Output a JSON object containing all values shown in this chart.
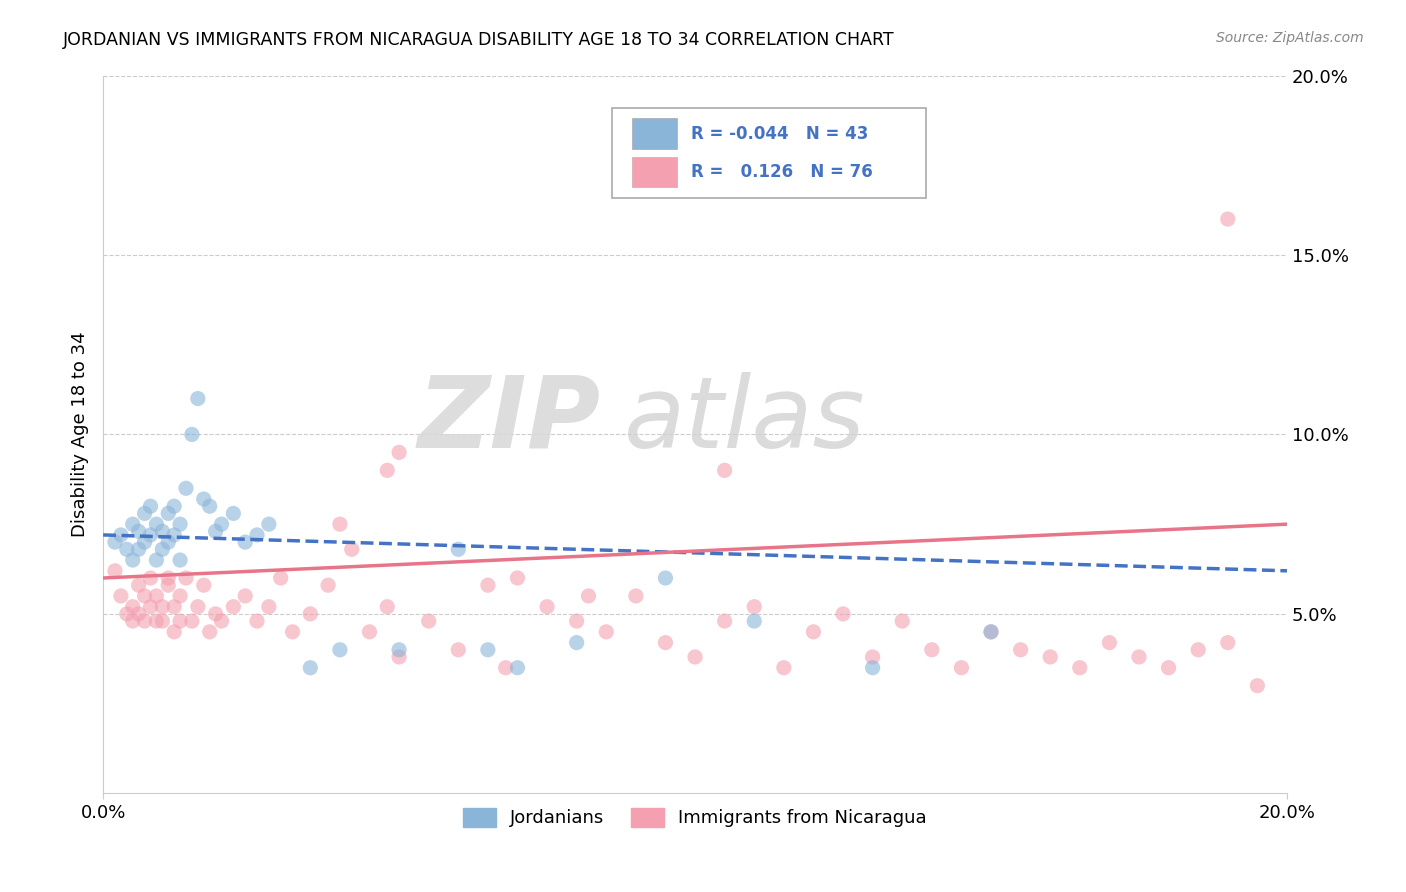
{
  "title": "JORDANIAN VS IMMIGRANTS FROM NICARAGUA DISABILITY AGE 18 TO 34 CORRELATION CHART",
  "source": "Source: ZipAtlas.com",
  "ylabel": "Disability Age 18 to 34",
  "legend_jordanians": "Jordanians",
  "legend_nicaragua": "Immigrants from Nicaragua",
  "r_jordanian": "-0.044",
  "n_jordanian": "43",
  "r_nicaragua": "0.126",
  "n_nicaragua": "76",
  "xlim": [
    0.0,
    0.2
  ],
  "ylim": [
    0.0,
    0.2
  ],
  "color_jordanian": "#8ab4d8",
  "color_nicaragua": "#f4a0b0",
  "watermark_zip": "ZIP",
  "watermark_atlas": "atlas",
  "jordanian_x": [
    0.002,
    0.003,
    0.004,
    0.005,
    0.005,
    0.006,
    0.006,
    0.007,
    0.007,
    0.008,
    0.008,
    0.009,
    0.009,
    0.01,
    0.01,
    0.011,
    0.011,
    0.012,
    0.012,
    0.013,
    0.013,
    0.014,
    0.015,
    0.016,
    0.017,
    0.018,
    0.019,
    0.02,
    0.022,
    0.024,
    0.026,
    0.028,
    0.035,
    0.04,
    0.05,
    0.06,
    0.065,
    0.07,
    0.08,
    0.095,
    0.11,
    0.13,
    0.15
  ],
  "jordanian_y": [
    0.07,
    0.072,
    0.068,
    0.065,
    0.075,
    0.068,
    0.073,
    0.07,
    0.078,
    0.08,
    0.072,
    0.065,
    0.075,
    0.068,
    0.073,
    0.07,
    0.078,
    0.08,
    0.072,
    0.065,
    0.075,
    0.085,
    0.1,
    0.11,
    0.082,
    0.08,
    0.073,
    0.075,
    0.078,
    0.07,
    0.072,
    0.075,
    0.035,
    0.04,
    0.04,
    0.068,
    0.04,
    0.035,
    0.042,
    0.06,
    0.048,
    0.035,
    0.045
  ],
  "nicaragua_x": [
    0.002,
    0.003,
    0.004,
    0.005,
    0.005,
    0.006,
    0.006,
    0.007,
    0.007,
    0.008,
    0.008,
    0.009,
    0.009,
    0.01,
    0.01,
    0.011,
    0.011,
    0.012,
    0.012,
    0.013,
    0.013,
    0.014,
    0.015,
    0.016,
    0.017,
    0.018,
    0.019,
    0.02,
    0.022,
    0.024,
    0.026,
    0.028,
    0.03,
    0.032,
    0.035,
    0.038,
    0.04,
    0.042,
    0.045,
    0.048,
    0.05,
    0.055,
    0.06,
    0.065,
    0.068,
    0.07,
    0.075,
    0.08,
    0.082,
    0.085,
    0.09,
    0.095,
    0.1,
    0.105,
    0.11,
    0.115,
    0.12,
    0.125,
    0.13,
    0.135,
    0.14,
    0.145,
    0.15,
    0.155,
    0.16,
    0.165,
    0.17,
    0.175,
    0.18,
    0.185,
    0.19,
    0.195,
    0.105,
    0.048,
    0.05,
    0.19
  ],
  "nicaragua_y": [
    0.062,
    0.055,
    0.05,
    0.052,
    0.048,
    0.058,
    0.05,
    0.055,
    0.048,
    0.052,
    0.06,
    0.048,
    0.055,
    0.052,
    0.048,
    0.058,
    0.06,
    0.045,
    0.052,
    0.048,
    0.055,
    0.06,
    0.048,
    0.052,
    0.058,
    0.045,
    0.05,
    0.048,
    0.052,
    0.055,
    0.048,
    0.052,
    0.06,
    0.045,
    0.05,
    0.058,
    0.075,
    0.068,
    0.045,
    0.052,
    0.038,
    0.048,
    0.04,
    0.058,
    0.035,
    0.06,
    0.052,
    0.048,
    0.055,
    0.045,
    0.055,
    0.042,
    0.038,
    0.048,
    0.052,
    0.035,
    0.045,
    0.05,
    0.038,
    0.048,
    0.04,
    0.035,
    0.045,
    0.04,
    0.038,
    0.035,
    0.042,
    0.038,
    0.035,
    0.04,
    0.042,
    0.03,
    0.09,
    0.09,
    0.095,
    0.16
  ]
}
